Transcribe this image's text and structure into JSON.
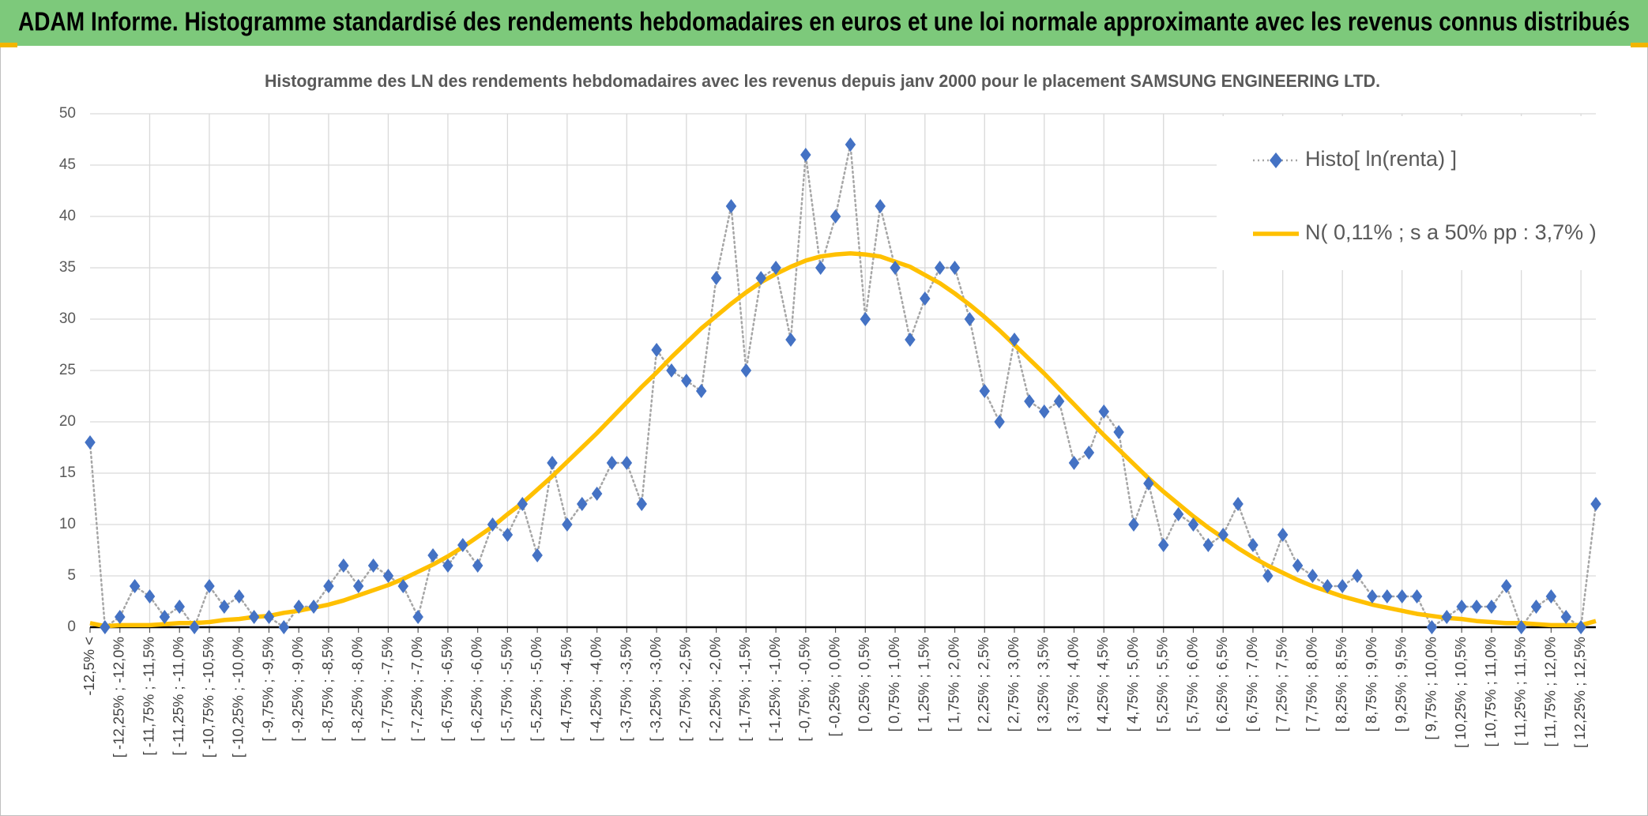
{
  "header": {
    "title": "ADAM Informe. Histogramme standardisé des rendements hebdomadaires en euros et une loi normale approximante avec les revenus connus distribués"
  },
  "chart_data": {
    "type": "line",
    "title": "Histogramme des LN des rendements hebdomadaires avec les revenus depuis janv 2000 pour le placement SAMSUNG ENGINEERING LTD.",
    "categories": [
      "-12,5% <",
      null,
      "[ -12,25% ; -12,0%",
      null,
      "[ -11,75% ; -11,5%",
      null,
      "[ -11,25% ; -11,0%",
      null,
      "[ -10,75% ; -10,5%",
      null,
      "[ -10,25% ; -10,0%",
      null,
      "[ -9,75% ; -9,5%",
      null,
      "[ -9,25% ; -9,0%",
      null,
      "[ -8,75% ; -8,5%",
      null,
      "[ -8,25% ; -8,0%",
      null,
      "[ -7,75% ; -7,5%",
      null,
      "[ -7,25% ; -7,0%",
      null,
      "[ -6,75% ; -6,5%",
      null,
      "[ -6,25% ; -6,0%",
      null,
      "[ -5,75% ; -5,5%",
      null,
      "[ -5,25% ; -5,0%",
      null,
      "[ -4,75% ; -4,5%",
      null,
      "[ -4,25% ; -4,0%",
      null,
      "[ -3,75% ; -3,5%",
      null,
      "[ -3,25% ; -3,0%",
      null,
      "[ -2,75% ; -2,5%",
      null,
      "[ -2,25% ; -2,0%",
      null,
      "[ -1,75% ; -1,5%",
      null,
      "[ -1,25% ; -1,0%",
      null,
      "[ -0,75% ; -0,5%",
      null,
      "[ -0,25% ; 0,0%",
      null,
      "[ 0,25% ; 0,5%",
      null,
      "[ 0,75% ; 1,0%",
      null,
      "[ 1,25% ; 1,5%",
      null,
      "[ 1,75% ; 2,0%",
      null,
      "[ 2,25% ; 2,5%",
      null,
      "[ 2,75% ; 3,0%",
      null,
      "[ 3,25% ; 3,5%",
      null,
      "[ 3,75% ; 4,0%",
      null,
      "[ 4,25% ; 4,5%",
      null,
      "[ 4,75% ; 5,0%",
      null,
      "[ 5,25% ; 5,5%",
      null,
      "[ 5,75% ; 6,0%",
      null,
      "[ 6,25% ; 6,5%",
      null,
      "[ 6,75% ; 7,0%",
      null,
      "[ 7,25% ; 7,5%",
      null,
      "[ 7,75% ; 8,0%",
      null,
      "[ 8,25% ; 8,5%",
      null,
      "[ 8,75% ; 9,0%",
      null,
      "[ 9,25% ; 9,5%",
      null,
      "[ 9,75% ; 10,0%",
      null,
      "[ 10,25% ; 10,5%",
      null,
      "[ 10,75% ; 11,0%",
      null,
      "[ 11,25% ; 11,5%",
      null,
      "[ 11,75% ; 12,0%",
      null,
      "[ 12,25% ; 12,5%",
      null
    ],
    "series": [
      {
        "name": "Histo[ ln(renta) ]",
        "color": "#4472c4",
        "line_color": "#a6a6a6",
        "values": [
          18,
          0,
          1,
          4,
          3,
          1,
          2,
          0,
          4,
          2,
          3,
          1,
          1,
          0,
          2,
          2,
          4,
          6,
          4,
          6,
          5,
          4,
          1,
          7,
          6,
          8,
          6,
          10,
          9,
          12,
          7,
          16,
          10,
          12,
          13,
          16,
          16,
          12,
          27,
          25,
          24,
          23,
          34,
          41,
          25,
          34,
          35,
          28,
          46,
          35,
          40,
          47,
          30,
          41,
          35,
          28,
          32,
          35,
          35,
          30,
          23,
          20,
          28,
          22,
          21,
          22,
          16,
          17,
          21,
          19,
          10,
          14,
          8,
          11,
          10,
          8,
          9,
          12,
          8,
          5,
          9,
          6,
          5,
          4,
          4,
          5,
          3,
          3,
          3,
          3,
          0,
          1,
          2,
          2,
          2,
          4,
          0,
          2,
          3,
          1,
          0,
          12
        ]
      },
      {
        "name": "N( 0,11% ; s a 50% pp : 3,7% )",
        "color": "#ffc000",
        "values": [
          0.4,
          0.1,
          0.2,
          0.2,
          0.2,
          0.3,
          0.4,
          0.4,
          0.5,
          0.7,
          0.8,
          1.0,
          1.1,
          1.4,
          1.6,
          1.9,
          2.2,
          2.6,
          3.1,
          3.6,
          4.1,
          4.7,
          5.4,
          6.1,
          6.9,
          7.8,
          8.8,
          9.8,
          11.0,
          12.1,
          13.4,
          14.7,
          16.1,
          17.5,
          18.9,
          20.4,
          21.9,
          23.4,
          24.8,
          26.3,
          27.7,
          29.1,
          30.3,
          31.5,
          32.6,
          33.6,
          34.4,
          35.1,
          35.7,
          36.1,
          36.3,
          36.4,
          36.3,
          36.1,
          35.6,
          35.1,
          34.3,
          33.5,
          32.5,
          31.4,
          30.2,
          28.9,
          27.5,
          26.1,
          24.7,
          23.2,
          21.7,
          20.2,
          18.7,
          17.3,
          15.9,
          14.5,
          13.2,
          12.0,
          10.8,
          9.7,
          8.7,
          7.7,
          6.8,
          6.0,
          5.3,
          4.6,
          4.0,
          3.5,
          3.0,
          2.6,
          2.2,
          1.9,
          1.6,
          1.3,
          1.1,
          0.9,
          0.8,
          0.6,
          0.5,
          0.4,
          0.4,
          0.3,
          0.2,
          0.2,
          0.2,
          0.6
        ]
      }
    ],
    "ylim": [
      0,
      50
    ],
    "yticks": [
      0,
      5,
      10,
      15,
      20,
      25,
      30,
      35,
      40,
      45,
      50
    ],
    "grid": true,
    "legend": "upper right"
  }
}
